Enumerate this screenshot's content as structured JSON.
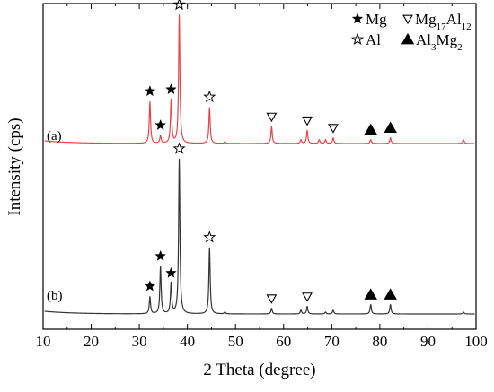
{
  "chart_data": {
    "type": "line",
    "xlabel": "2 Theta (degree)",
    "ylabel": "Intensity (cps)",
    "xlim": [
      10,
      100
    ],
    "xticks": [
      "10",
      "20",
      "30",
      "40",
      "50",
      "60",
      "70",
      "80",
      "90",
      "100"
    ],
    "yticks_shown": false,
    "grid": false,
    "legend_position": "top-right",
    "legend": [
      {
        "symbol": "filled-star",
        "text": "Mg"
      },
      {
        "symbol": "open-triangle",
        "text_main": "Mg",
        "sub1": "17",
        "text_mid": "Al",
        "sub2": "12"
      },
      {
        "symbol": "open-star",
        "text": "Al"
      },
      {
        "symbol": "filled-triangle",
        "text_main": "Al",
        "sub1": "3",
        "text_mid": "Mg",
        "sub2": "2"
      }
    ],
    "series": [
      {
        "label": "(a)",
        "color": "#e8434a",
        "baseline": 0.0,
        "peaks": [
          {
            "x": 32.2,
            "y": 0.22
          },
          {
            "x": 34.4,
            "y": 0.04
          },
          {
            "x": 36.6,
            "y": 0.23
          },
          {
            "x": 38.3,
            "y": 0.68
          },
          {
            "x": 44.6,
            "y": 0.19
          },
          {
            "x": 47.8,
            "y": 0.01
          },
          {
            "x": 57.5,
            "y": 0.09
          },
          {
            "x": 63.6,
            "y": 0.02
          },
          {
            "x": 64.9,
            "y": 0.07
          },
          {
            "x": 67.4,
            "y": 0.02
          },
          {
            "x": 68.7,
            "y": 0.02
          },
          {
            "x": 70.3,
            "y": 0.03
          },
          {
            "x": 78.1,
            "y": 0.02
          },
          {
            "x": 82.2,
            "y": 0.03
          },
          {
            "x": 97.4,
            "y": 0.02
          }
        ],
        "markers": [
          {
            "x": 32.2,
            "symbol": "filled-star"
          },
          {
            "x": 34.4,
            "symbol": "filled-star"
          },
          {
            "x": 36.6,
            "symbol": "filled-star"
          },
          {
            "x": 38.3,
            "symbol": "open-star"
          },
          {
            "x": 44.6,
            "symbol": "open-star"
          },
          {
            "x": 57.5,
            "symbol": "open-triangle"
          },
          {
            "x": 64.9,
            "symbol": "open-triangle"
          },
          {
            "x": 70.3,
            "symbol": "open-triangle"
          },
          {
            "x": 78.1,
            "symbol": "filled-triangle"
          },
          {
            "x": 82.2,
            "symbol": "filled-triangle"
          }
        ]
      },
      {
        "label": "(b)",
        "color": "#333333",
        "baseline": 0.0,
        "peaks": [
          {
            "x": 32.2,
            "y": 0.09
          },
          {
            "x": 34.4,
            "y": 0.25
          },
          {
            "x": 36.6,
            "y": 0.16
          },
          {
            "x": 38.3,
            "y": 0.82
          },
          {
            "x": 44.6,
            "y": 0.35
          },
          {
            "x": 47.8,
            "y": 0.01
          },
          {
            "x": 57.5,
            "y": 0.03
          },
          {
            "x": 63.6,
            "y": 0.02
          },
          {
            "x": 64.9,
            "y": 0.04
          },
          {
            "x": 68.7,
            "y": 0.01
          },
          {
            "x": 70.3,
            "y": 0.02
          },
          {
            "x": 78.1,
            "y": 0.05
          },
          {
            "x": 82.2,
            "y": 0.05
          },
          {
            "x": 97.4,
            "y": 0.01
          }
        ],
        "markers": [
          {
            "x": 32.2,
            "symbol": "filled-star"
          },
          {
            "x": 34.4,
            "symbol": "filled-star"
          },
          {
            "x": 36.6,
            "symbol": "filled-star"
          },
          {
            "x": 38.3,
            "symbol": "open-star"
          },
          {
            "x": 44.6,
            "symbol": "open-star"
          },
          {
            "x": 57.5,
            "symbol": "open-triangle"
          },
          {
            "x": 64.9,
            "symbol": "open-triangle"
          },
          {
            "x": 78.1,
            "symbol": "filled-triangle"
          },
          {
            "x": 82.2,
            "symbol": "filled-triangle"
          }
        ]
      }
    ]
  }
}
